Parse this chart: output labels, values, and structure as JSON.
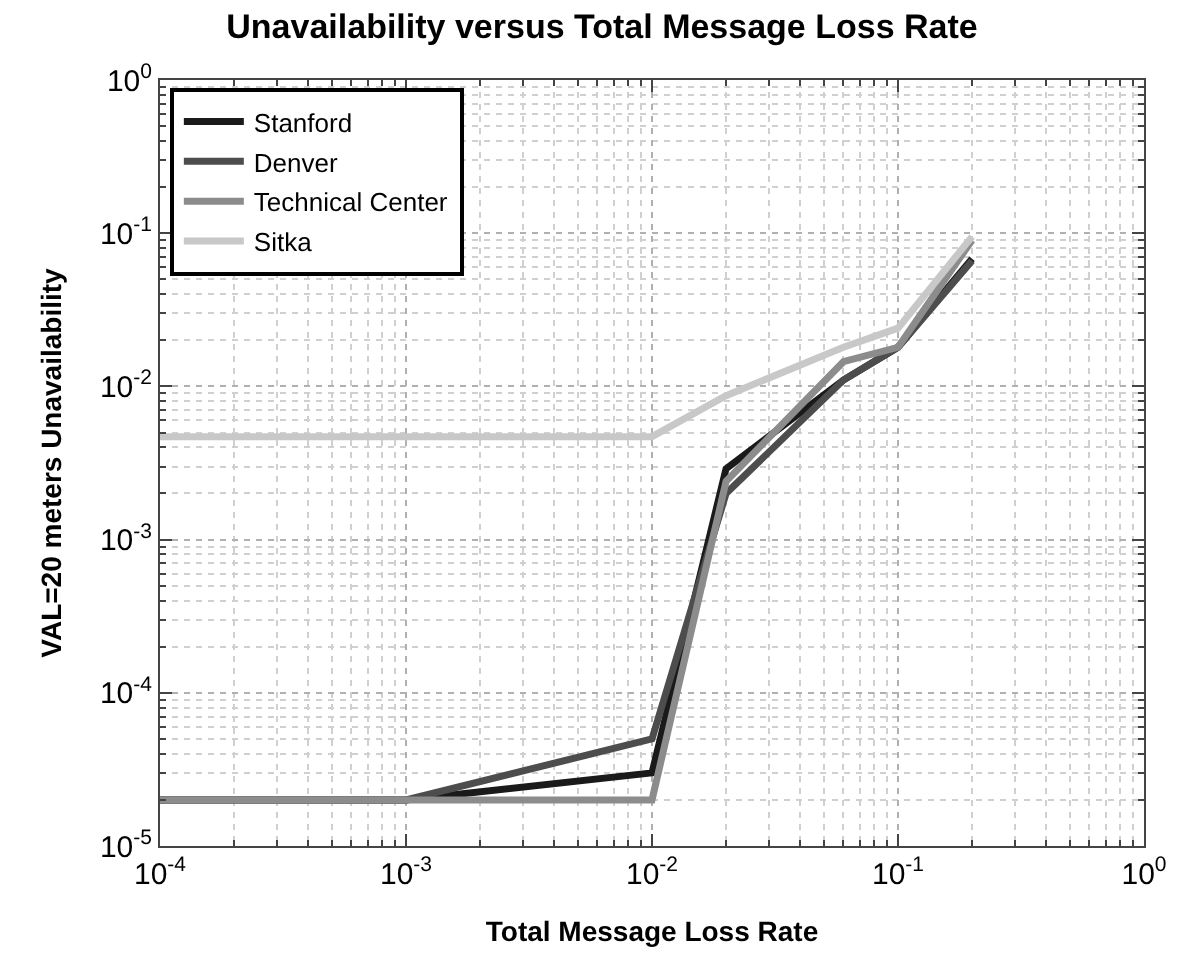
{
  "chart_data": {
    "type": "line",
    "title": "Unavailability versus Total Message Loss Rate",
    "xlabel": "Total Message Loss Rate",
    "ylabel": "VAL=20 meters Unavailability",
    "x": [
      0.0001,
      0.001,
      0.01,
      0.02,
      0.06,
      0.1,
      0.2
    ],
    "series": [
      {
        "name": "Stanford",
        "color": "#1a1a1a",
        "values": [
          2e-05,
          2e-05,
          3e-05,
          0.0029,
          0.011,
          0.018,
          0.068
        ]
      },
      {
        "name": "Denver",
        "color": "#4d4d4d",
        "values": [
          2e-05,
          2e-05,
          5e-05,
          0.002,
          0.011,
          0.018,
          0.066
        ]
      },
      {
        "name": "Technical Center",
        "color": "#8c8c8c",
        "values": [
          2e-05,
          2e-05,
          2e-05,
          0.0024,
          0.0145,
          0.018,
          0.09
        ]
      },
      {
        "name": "Sitka",
        "color": "#c8c8c8",
        "values": [
          0.0047,
          0.0047,
          0.0047,
          0.0087,
          0.018,
          0.024,
          0.095
        ]
      }
    ],
    "log": "xy",
    "xlim": [
      0.0001,
      1
    ],
    "ylim": [
      1e-05,
      1
    ],
    "xticks": [
      {
        "value": 0.0001,
        "label": "10$^{-4}$"
      },
      {
        "value": 0.001,
        "label": "10$^{-3}$"
      },
      {
        "value": 0.01,
        "label": "10$^{-2}$"
      },
      {
        "value": 0.1,
        "label": "10$^{-1}$"
      },
      {
        "value": 1,
        "label": "10$^{0}$"
      }
    ],
    "yticks": [
      {
        "value": 1e-05,
        "label": "10$^{-5}$"
      },
      {
        "value": 0.0001,
        "label": "10$^{-4}$"
      },
      {
        "value": 0.001,
        "label": "10$^{-3}$"
      },
      {
        "value": 0.01,
        "label": "10$^{-2}$"
      },
      {
        "value": 0.1,
        "label": "10$^{-1}$"
      },
      {
        "value": 1,
        "label": "10$^{0}$"
      }
    ],
    "grid": true,
    "legend": "top left",
    "line_style": "solid",
    "marker": "none"
  }
}
